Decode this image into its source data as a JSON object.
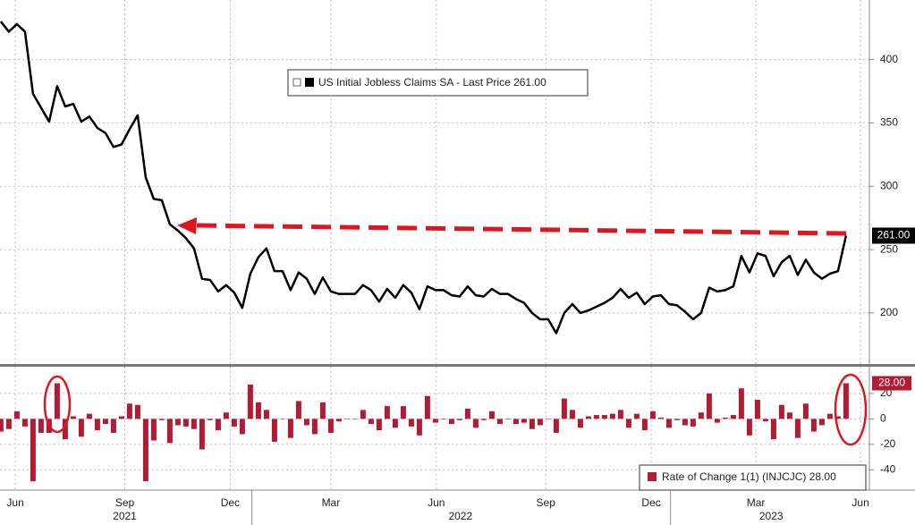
{
  "chart_data": [
    {
      "type": "line",
      "series": [
        {
          "name": "US Initial Jobless Claims SA - Last Price 261.00",
          "color": "#000000",
          "values": [
            430,
            422,
            428,
            422,
            373,
            362,
            351,
            379,
            363,
            365,
            351,
            355,
            346,
            342,
            331,
            333,
            345,
            356,
            307,
            290,
            289,
            270,
            265,
            259,
            251,
            227,
            226,
            217,
            222,
            216,
            204,
            231,
            244,
            251,
            233,
            233,
            218,
            232,
            227,
            215,
            228,
            217,
            215,
            215,
            215,
            222,
            218,
            209,
            219,
            212,
            222,
            216,
            203,
            221,
            218,
            218,
            214,
            213,
            221,
            214,
            213,
            219,
            215,
            215,
            211,
            208,
            200,
            195,
            195,
            184,
            200,
            207,
            200,
            202,
            205,
            208,
            212,
            219,
            212,
            216,
            207,
            213,
            214,
            207,
            206,
            201,
            195,
            200,
            220,
            217,
            218,
            221,
            245,
            232,
            247,
            245,
            229,
            240,
            245,
            230,
            242,
            232,
            227,
            231,
            233,
            261
          ]
        }
      ],
      "last_price_label": "261.00",
      "xlim": [
        0,
        108
      ],
      "ylim": [
        159,
        447
      ],
      "yticks": [
        200,
        250,
        300,
        350,
        400
      ],
      "grid": true
    },
    {
      "type": "bar",
      "series": [
        {
          "name": "Rate of Change 1(1) (INJCJC) 28.00",
          "color": "#b31b34",
          "values": [
            -10,
            -8,
            6,
            -6,
            -49,
            -11,
            -11,
            28,
            -16,
            2,
            -14,
            4,
            -9,
            -4,
            -11,
            2,
            12,
            11,
            -49,
            -17,
            -1,
            -19,
            -5,
            -6,
            -8,
            -24,
            -1,
            -9,
            5,
            -6,
            -12,
            27,
            13,
            7,
            -18,
            0,
            -15,
            14,
            -5,
            -12,
            13,
            -11,
            -2,
            0,
            0,
            7,
            -4,
            -9,
            10,
            -7,
            10,
            -6,
            -13,
            18,
            -3,
            0,
            -4,
            -1,
            8,
            -7,
            -1,
            6,
            -4,
            0,
            -4,
            -3,
            -8,
            -5,
            0,
            -11,
            16,
            7,
            -7,
            2,
            3,
            3,
            4,
            7,
            -7,
            4,
            -9,
            6,
            1,
            -7,
            -1,
            -5,
            -6,
            5,
            20,
            -3,
            1,
            3,
            24,
            -13,
            15,
            -2,
            -16,
            11,
            5,
            -15,
            12,
            -10,
            -5,
            4,
            2,
            28
          ]
        }
      ],
      "last_label": "28.00",
      "xlim": [
        0,
        108
      ],
      "ylim": [
        -56,
        41
      ],
      "yticks": [
        20,
        0,
        -20,
        -40
      ],
      "grid": true,
      "xticks": [
        {
          "value": 1.9,
          "label": "Jun"
        },
        {
          "value": 15.5,
          "label": "Sep"
        },
        {
          "value": 28.6,
          "label": "Dec"
        },
        {
          "value": 41.1,
          "label": "Mar"
        },
        {
          "value": 54.2,
          "label": "Jun"
        },
        {
          "value": 67.8,
          "label": "Sep"
        },
        {
          "value": 80.9,
          "label": "Dec"
        },
        {
          "value": 93.9,
          "label": "Mar"
        },
        {
          "value": 106.9,
          "label": "Jun"
        }
      ],
      "year_labels": [
        {
          "value": 15.5,
          "label": "2021"
        },
        {
          "value": 57.2,
          "label": "2022"
        },
        {
          "value": 95.8,
          "label": "2023"
        }
      ],
      "year_breaks": [
        31.3,
        83.3
      ]
    }
  ]
}
